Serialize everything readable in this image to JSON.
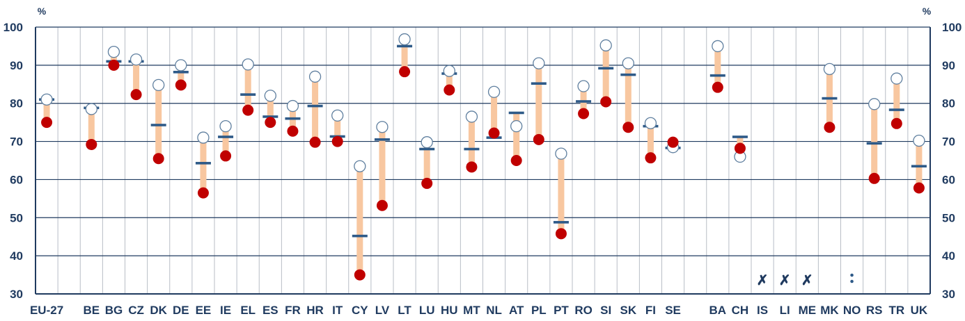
{
  "chart_data": {
    "type": "range-dot",
    "unit_left": "%",
    "unit_right": "%",
    "ylim": [
      30,
      100
    ],
    "yticks": [
      30,
      40,
      50,
      60,
      70,
      80,
      90,
      100
    ],
    "grid": true,
    "legend": "none",
    "categories": [
      "EU-27",
      "",
      "BE",
      "BG",
      "CZ",
      "DK",
      "DE",
      "EE",
      "IE",
      "EL",
      "ES",
      "FR",
      "HR",
      "IT",
      "CY",
      "LV",
      "LT",
      "LU",
      "HU",
      "MT",
      "NL",
      "AT",
      "PL",
      "PT",
      "RO",
      "SI",
      "SK",
      "FI",
      "SE",
      "",
      "BA",
      "CH",
      "IS",
      "LI",
      "ME",
      "MK",
      "NO",
      "RS",
      "TR",
      "UK"
    ],
    "series": [
      {
        "marker": "white-circle",
        "values": [
          81,
          null,
          78.5,
          93.5,
          91.5,
          84.8,
          90,
          71,
          74,
          90.2,
          82,
          79.3,
          87,
          76.8,
          63.5,
          73.8,
          96.8,
          69.8,
          88.5,
          76.5,
          83,
          74,
          90.5,
          66.8,
          84.5,
          95.2,
          90.5,
          74.8,
          68.5,
          null,
          95,
          66,
          null,
          null,
          null,
          89,
          null,
          79.8,
          86.5,
          70.2
        ]
      },
      {
        "marker": "red-dot",
        "values": [
          75,
          null,
          69.2,
          90,
          82.3,
          65.5,
          84.8,
          56.5,
          66.2,
          78.2,
          75,
          72.7,
          69.8,
          70,
          35,
          53.2,
          88.3,
          59,
          83.5,
          63.3,
          72.2,
          65,
          70.5,
          45.8,
          77.3,
          80.4,
          73.7,
          65.7,
          69.8,
          null,
          84.2,
          68.2,
          null,
          null,
          null,
          73.7,
          null,
          60.3,
          74.7,
          57.8
        ]
      },
      {
        "marker": "dash",
        "values": [
          81,
          null,
          78.8,
          91,
          91,
          74.3,
          88.2,
          64.3,
          71.2,
          82.3,
          76.5,
          76,
          79.3,
          71.3,
          45.2,
          70.5,
          95,
          68,
          87.8,
          68,
          71,
          77.5,
          85.2,
          48.8,
          80.5,
          89.2,
          87.5,
          74,
          68.3,
          null,
          87.3,
          71.2,
          null,
          null,
          null,
          81.3,
          null,
          69.5,
          78.3,
          63.5
        ]
      }
    ],
    "annotations": [
      "",
      "",
      "",
      "",
      "",
      "",
      "",
      "",
      "",
      "",
      "",
      "",
      "",
      "",
      "",
      "",
      "",
      "",
      "",
      "",
      "",
      "",
      "",
      "",
      "",
      "",
      "",
      "",
      "",
      "",
      "",
      "",
      "✗",
      "✗",
      "✗",
      "",
      ":",
      "",
      "",
      ""
    ]
  },
  "colors": {
    "range_bar": "#f8c7a0",
    "dot": "#c00000",
    "dash": "#2e5a88",
    "circle_stroke": "#5f7f9f",
    "axis": "#1f3a5f",
    "major_grid": "#1f3a5f",
    "minor_grid": "#b8bec6"
  }
}
